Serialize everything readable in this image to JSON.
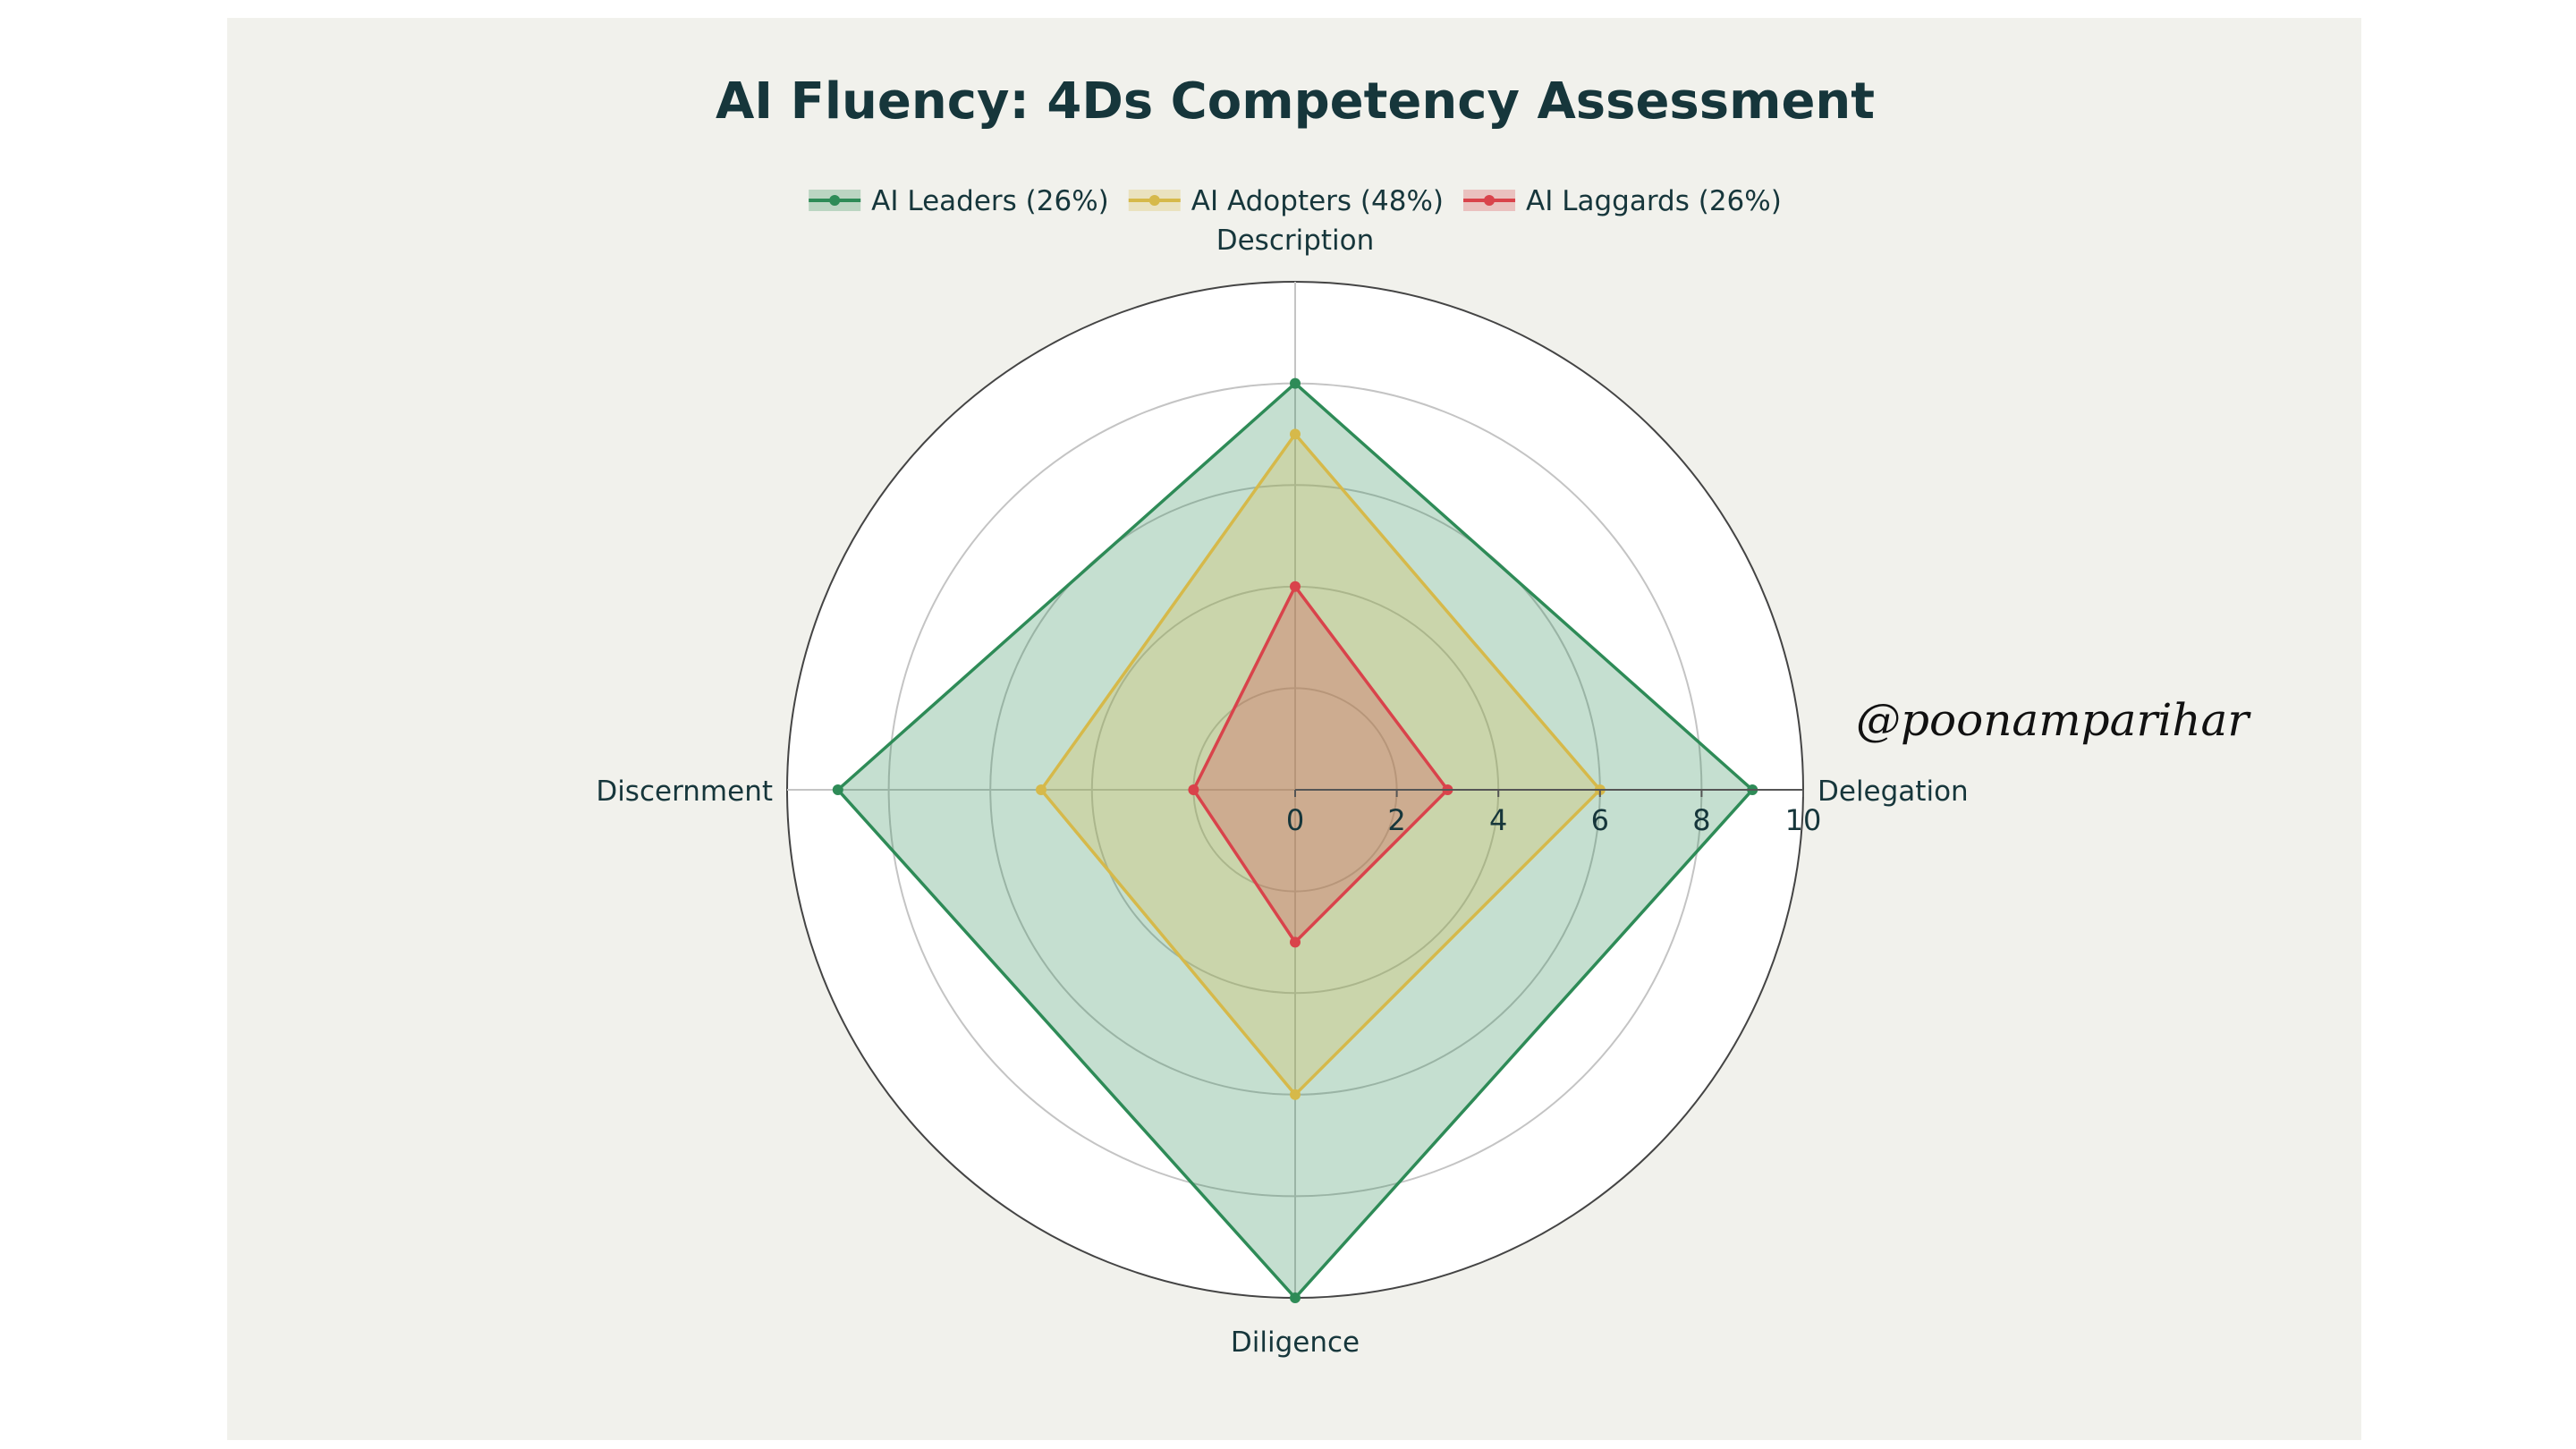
{
  "chart_data": {
    "type": "radar",
    "title": "AI Fluency: 4Ds Competency Assessment",
    "axes": [
      "Description",
      "Delegation",
      "Diligence",
      "Discernment"
    ],
    "radial_range": [
      0,
      10
    ],
    "radial_ticks": [
      "0",
      "2",
      "4",
      "6",
      "8",
      "10"
    ],
    "grid": true,
    "legend_position": "top-center",
    "series": [
      {
        "name": "AI Leaders (26%)",
        "values": [
          8,
          9,
          10,
          9
        ],
        "color": "#2e8b57"
      },
      {
        "name": "AI Adopters (48%)",
        "values": [
          7,
          6,
          6,
          5
        ],
        "color": "#d6b94a"
      },
      {
        "name": "AI Laggards (26%)",
        "values": [
          4,
          3,
          3,
          2
        ],
        "color": "#d9434b"
      }
    ]
  },
  "watermark": "@poonamparihar"
}
